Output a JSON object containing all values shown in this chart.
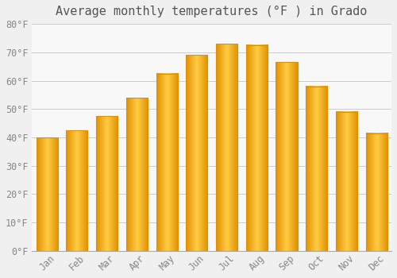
{
  "title": "Average monthly temperatures (°F ) in Grado",
  "months": [
    "Jan",
    "Feb",
    "Mar",
    "Apr",
    "May",
    "Jun",
    "Jul",
    "Aug",
    "Sep",
    "Oct",
    "Nov",
    "Dec"
  ],
  "values": [
    40,
    42.5,
    47.5,
    54,
    62.5,
    69,
    73,
    72.5,
    66.5,
    58,
    49,
    41.5
  ],
  "bar_color_light": "#FFCC44",
  "bar_color_dark": "#F5A800",
  "bar_edge_color": "#E09000",
  "background_color": "#f0f0f0",
  "plot_bg_color": "#f8f8f8",
  "ylim": [
    0,
    80
  ],
  "yticks": [
    0,
    10,
    20,
    30,
    40,
    50,
    60,
    70,
    80
  ],
  "grid_color": "#cccccc",
  "title_fontsize": 11,
  "tick_fontsize": 8.5,
  "title_color": "#555555",
  "tick_color": "#888888"
}
